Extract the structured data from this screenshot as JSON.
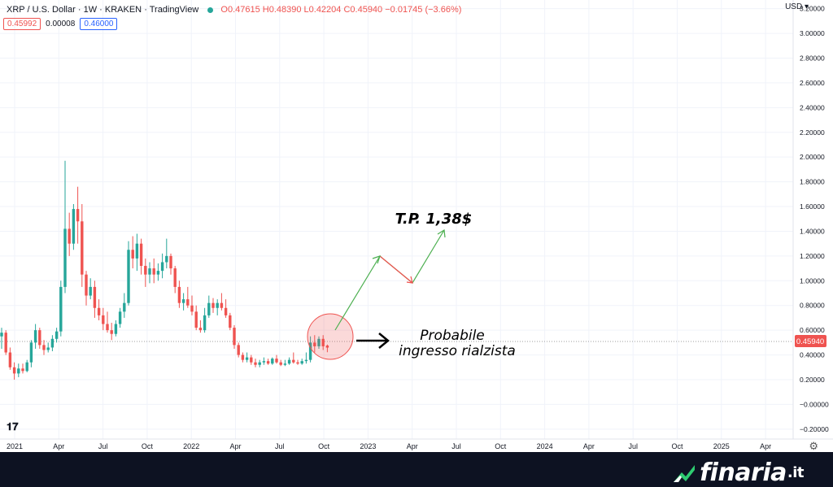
{
  "header": {
    "symbol": "XRP / U.S. Dollar",
    "interval": "1W",
    "exchange": "KRAKEN",
    "source": "TradingView",
    "ohlc": "O0.47615 H0.48390 L0.42204 C0.45940 −0.01745 (−3.66%)"
  },
  "bid_ask": {
    "bid": "0.45992",
    "spread": "0.00008",
    "ask": "0.46000"
  },
  "currency": "USD",
  "colors": {
    "up": "#26a69a",
    "down": "#ef5350",
    "footer": "#0d1222",
    "accent": "#2962ff"
  },
  "chart_data": {
    "type": "candlestick",
    "y_axis_ticks": [
      "3.20000",
      "3.00000",
      "2.80000",
      "2.60000",
      "2.40000",
      "2.20000",
      "2.00000",
      "1.80000",
      "1.60000",
      "1.40000",
      "1.20000",
      "1.00000",
      "0.80000",
      "0.60000",
      "0.40000",
      "0.20000",
      "−0.00000",
      "−0.20000"
    ],
    "x_axis_ticks": [
      "2021",
      "Apr",
      "Jul",
      "Oct",
      "2022",
      "Apr",
      "Jul",
      "Oct",
      "2023",
      "Apr",
      "Jul",
      "Oct",
      "2024",
      "Apr",
      "Jul",
      "Oct",
      "2025",
      "Apr"
    ],
    "ylim": [
      -0.28,
      3.27
    ],
    "last_price": "0.45940",
    "candles": [
      [
        0.55,
        0.62,
        0.45,
        0.58
      ],
      [
        0.58,
        0.6,
        0.4,
        0.42
      ],
      [
        0.42,
        0.46,
        0.28,
        0.3
      ],
      [
        0.3,
        0.34,
        0.2,
        0.25
      ],
      [
        0.25,
        0.33,
        0.22,
        0.29
      ],
      [
        0.29,
        0.33,
        0.25,
        0.27
      ],
      [
        0.27,
        0.36,
        0.26,
        0.34
      ],
      [
        0.34,
        0.52,
        0.3,
        0.5
      ],
      [
        0.5,
        0.65,
        0.45,
        0.6
      ],
      [
        0.6,
        0.62,
        0.45,
        0.48
      ],
      [
        0.48,
        0.52,
        0.4,
        0.44
      ],
      [
        0.44,
        0.5,
        0.42,
        0.46
      ],
      [
        0.46,
        0.56,
        0.43,
        0.53
      ],
      [
        0.53,
        0.62,
        0.5,
        0.59
      ],
      [
        0.59,
        1.0,
        0.55,
        0.95
      ],
      [
        0.95,
        1.97,
        0.9,
        1.42
      ],
      [
        1.42,
        1.55,
        1.2,
        1.3
      ],
      [
        1.3,
        1.62,
        1.25,
        1.58
      ],
      [
        1.58,
        1.76,
        1.3,
        1.48
      ],
      [
        1.48,
        1.62,
        0.95,
        1.05
      ],
      [
        1.05,
        1.08,
        0.8,
        0.88
      ],
      [
        0.88,
        1.02,
        0.85,
        0.95
      ],
      [
        0.95,
        1.0,
        0.7,
        0.78
      ],
      [
        0.78,
        0.85,
        0.68,
        0.72
      ],
      [
        0.72,
        0.78,
        0.6,
        0.65
      ],
      [
        0.65,
        0.75,
        0.58,
        0.6
      ],
      [
        0.6,
        0.66,
        0.52,
        0.57
      ],
      [
        0.57,
        0.68,
        0.55,
        0.65
      ],
      [
        0.65,
        0.78,
        0.62,
        0.75
      ],
      [
        0.75,
        0.9,
        0.7,
        0.82
      ],
      [
        0.82,
        1.32,
        0.8,
        1.25
      ],
      [
        1.25,
        1.36,
        1.1,
        1.18
      ],
      [
        1.18,
        1.38,
        1.08,
        1.3
      ],
      [
        1.3,
        1.34,
        1.05,
        1.12
      ],
      [
        1.12,
        1.18,
        0.95,
        1.05
      ],
      [
        1.05,
        1.15,
        0.98,
        1.1
      ],
      [
        1.1,
        1.18,
        0.98,
        1.05
      ],
      [
        1.05,
        1.14,
        1.0,
        1.08
      ],
      [
        1.08,
        1.22,
        1.02,
        1.15
      ],
      [
        1.15,
        1.34,
        1.1,
        1.2
      ],
      [
        1.2,
        1.22,
        1.05,
        1.1
      ],
      [
        1.1,
        1.12,
        0.9,
        0.95
      ],
      [
        0.95,
        1.0,
        0.78,
        0.82
      ],
      [
        0.82,
        0.9,
        0.76,
        0.85
      ],
      [
        0.85,
        0.95,
        0.78,
        0.8
      ],
      [
        0.8,
        0.88,
        0.72,
        0.75
      ],
      [
        0.75,
        0.8,
        0.6,
        0.62
      ],
      [
        0.62,
        0.68,
        0.58,
        0.6
      ],
      [
        0.6,
        0.78,
        0.58,
        0.72
      ],
      [
        0.72,
        0.88,
        0.7,
        0.82
      ],
      [
        0.82,
        0.86,
        0.74,
        0.78
      ],
      [
        0.78,
        0.85,
        0.72,
        0.82
      ],
      [
        0.82,
        0.9,
        0.76,
        0.78
      ],
      [
        0.78,
        0.85,
        0.7,
        0.72
      ],
      [
        0.72,
        0.74,
        0.6,
        0.62
      ],
      [
        0.62,
        0.64,
        0.45,
        0.48
      ],
      [
        0.48,
        0.5,
        0.38,
        0.4
      ],
      [
        0.4,
        0.42,
        0.34,
        0.36
      ],
      [
        0.36,
        0.42,
        0.34,
        0.38
      ],
      [
        0.38,
        0.4,
        0.32,
        0.34
      ],
      [
        0.34,
        0.37,
        0.3,
        0.32
      ],
      [
        0.32,
        0.36,
        0.3,
        0.34
      ],
      [
        0.34,
        0.38,
        0.32,
        0.35
      ],
      [
        0.35,
        0.37,
        0.32,
        0.33
      ],
      [
        0.33,
        0.38,
        0.32,
        0.37
      ],
      [
        0.37,
        0.4,
        0.33,
        0.34
      ],
      [
        0.34,
        0.36,
        0.31,
        0.32
      ],
      [
        0.32,
        0.36,
        0.31,
        0.33
      ],
      [
        0.33,
        0.38,
        0.32,
        0.36
      ],
      [
        0.36,
        0.42,
        0.33,
        0.34
      ],
      [
        0.34,
        0.36,
        0.32,
        0.33
      ],
      [
        0.33,
        0.37,
        0.32,
        0.35
      ],
      [
        0.35,
        0.42,
        0.33,
        0.36
      ],
      [
        0.36,
        0.55,
        0.34,
        0.5
      ],
      [
        0.5,
        0.56,
        0.42,
        0.47
      ],
      [
        0.47,
        0.55,
        0.45,
        0.53
      ],
      [
        0.53,
        0.56,
        0.44,
        0.47
      ],
      [
        0.476,
        0.484,
        0.422,
        0.459
      ]
    ],
    "annotations": {
      "target": "T.P. 1,38$",
      "entry_line1": "Probabile",
      "entry_line2": "ingresso rialzista"
    }
  },
  "brand": {
    "name": "finaria",
    "suffix": ".it"
  }
}
